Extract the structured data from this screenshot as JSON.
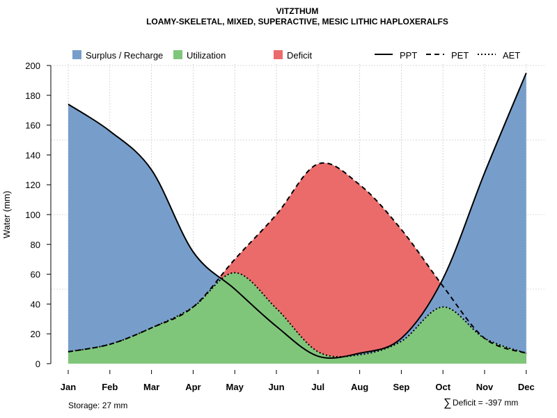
{
  "chart_data": {
    "type": "area",
    "title": "VITZTHUM",
    "subtitle": "LOAMY-SKELETAL, MIXED, SUPERACTIVE, MESIC LITHIC HAPLOXERALFS",
    "xlabel": "",
    "ylabel": "Water (mm)",
    "ylim": [
      0,
      200
    ],
    "yticks": [
      0,
      20,
      40,
      60,
      80,
      100,
      120,
      140,
      160,
      180,
      200
    ],
    "categories": [
      "Jan",
      "Feb",
      "Mar",
      "Apr",
      "May",
      "Jun",
      "Jul",
      "Aug",
      "Sep",
      "Oct",
      "Nov",
      "Dec"
    ],
    "series": [
      {
        "name": "PPT",
        "style": "solid",
        "values": [
          174,
          156,
          130,
          75,
          50,
          25,
          5,
          7,
          17,
          57,
          128,
          195
        ]
      },
      {
        "name": "PET",
        "style": "dashed",
        "values": [
          8,
          13,
          24,
          38,
          70,
          100,
          134,
          120,
          90,
          52,
          17,
          7
        ]
      },
      {
        "name": "AET",
        "style": "dotted",
        "values": [
          8,
          13,
          24,
          38,
          61,
          37,
          8,
          6,
          15,
          38,
          17,
          7
        ]
      }
    ],
    "legend": {
      "position": "top",
      "fills": [
        {
          "label": "Surplus / Recharge",
          "color": "#779ECB"
        },
        {
          "label": "Utilization",
          "color": "#80C67A"
        },
        {
          "label": "Deficit",
          "color": "#EB6B6B"
        }
      ],
      "lines": [
        {
          "label": "PPT",
          "style": "solid"
        },
        {
          "label": "PET",
          "style": "dashed"
        },
        {
          "label": "AET",
          "style": "dotted"
        }
      ]
    },
    "grid": true,
    "annotations": {
      "storage": "Storage: 27 mm",
      "deficit_symbol": "∑",
      "deficit": "Deficit = -397 mm"
    }
  }
}
